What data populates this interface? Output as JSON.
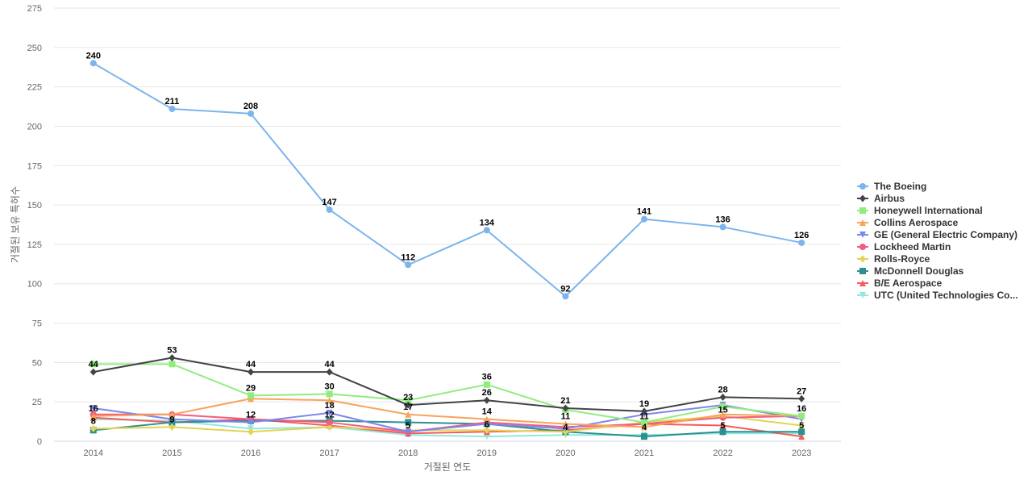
{
  "chart_data": {
    "type": "line",
    "xlabel": "거절된 연도",
    "ylabel": "거절된 보유 특허수",
    "ylim": [
      0,
      275
    ],
    "yticks": [
      0,
      25,
      50,
      75,
      100,
      125,
      150,
      175,
      200,
      225,
      250,
      275
    ],
    "categories": [
      "2014",
      "2015",
      "2016",
      "2017",
      "2018",
      "2019",
      "2020",
      "2021",
      "2022",
      "2023"
    ],
    "grid": true,
    "legend_position": "right",
    "series": [
      {
        "name": "The Boeing",
        "color": "#7cb5ec",
        "marker": "circle",
        "values": [
          240,
          211,
          208,
          147,
          112,
          134,
          92,
          141,
          136,
          126
        ],
        "labeled": true
      },
      {
        "name": "Airbus",
        "color": "#434348",
        "marker": "diamond",
        "values": [
          44,
          53,
          44,
          44,
          23,
          26,
          21,
          19,
          28,
          27
        ],
        "labeled": true
      },
      {
        "name": "Honeywell International",
        "color": "#90ed7d",
        "marker": "square",
        "values": [
          49,
          49,
          29,
          30,
          26,
          36,
          20,
          12,
          22,
          16
        ],
        "labeled": false
      },
      {
        "name": "Collins Aerospace",
        "color": "#f7a35c",
        "marker": "triangle",
        "values": [
          16,
          17,
          27,
          26,
          17,
          14,
          11,
          9,
          17,
          16
        ],
        "labeled": false
      },
      {
        "name": "GE (General Electric Company)",
        "color": "#8085e9",
        "marker": "triangle-down",
        "values": [
          21,
          14,
          12,
          18,
          6,
          11,
          8,
          17,
          23,
          14
        ],
        "labeled": false
      },
      {
        "name": "Lockheed Martin",
        "color": "#f15c80",
        "marker": "circle",
        "values": [
          17,
          17,
          14,
          12,
          6,
          12,
          9,
          11,
          15,
          16
        ],
        "labeled": false
      },
      {
        "name": "Rolls-Royce",
        "color": "#e4d354",
        "marker": "diamond",
        "values": [
          8,
          9,
          6,
          9,
          7,
          7,
          6,
          12,
          16,
          10
        ],
        "labeled": false
      },
      {
        "name": "McDonnell Douglas",
        "color": "#2b908f",
        "marker": "square",
        "values": [
          7,
          12,
          13,
          13,
          12,
          11,
          6,
          3,
          6,
          6
        ],
        "labeled": false
      },
      {
        "name": "B/E Aerospace",
        "color": "#f45b5b",
        "marker": "triangle",
        "values": [
          15,
          12,
          14,
          10,
          5,
          6,
          7,
          11,
          10,
          3
        ],
        "labeled": false
      },
      {
        "name": "UTC (United Technologies Co...",
        "color": "#91e8e1",
        "marker": "triangle-down",
        "values": [
          14,
          13,
          8,
          9,
          4,
          3,
          4,
          4,
          5,
          5
        ],
        "labeled": false
      }
    ],
    "extra_labels": [
      {
        "category": "2014",
        "text": "16",
        "series_index": 3
      },
      {
        "category": "2014",
        "text": "8",
        "series_index": 6
      },
      {
        "category": "2015",
        "text": "9",
        "series_index": 6
      },
      {
        "category": "2016",
        "text": "29",
        "series_index": 2
      },
      {
        "category": "2016",
        "text": "12",
        "series_index": 4
      },
      {
        "category": "2017",
        "text": "30",
        "series_index": 2
      },
      {
        "category": "2017",
        "text": "18",
        "series_index": 4
      },
      {
        "category": "2017",
        "text": "12",
        "series_index": 5
      },
      {
        "category": "2018",
        "text": "17",
        "series_index": 3
      },
      {
        "category": "2018",
        "text": "5",
        "series_index": 8
      },
      {
        "category": "2019",
        "text": "36",
        "series_index": 2
      },
      {
        "category": "2019",
        "text": "14",
        "series_index": 3
      },
      {
        "category": "2019",
        "text": "6",
        "series_index": 8
      },
      {
        "category": "2020",
        "text": "11",
        "series_index": 3
      },
      {
        "category": "2020",
        "text": "4",
        "series_index": 9
      },
      {
        "category": "2021",
        "text": "11",
        "series_index": 5
      },
      {
        "category": "2021",
        "text": "4",
        "series_index": 9
      },
      {
        "category": "2022",
        "text": "15",
        "series_index": 5
      },
      {
        "category": "2022",
        "text": "5",
        "series_index": 9
      },
      {
        "category": "2023",
        "text": "16",
        "series_index": 3
      },
      {
        "category": "2023",
        "text": "5",
        "series_index": 9
      }
    ]
  }
}
